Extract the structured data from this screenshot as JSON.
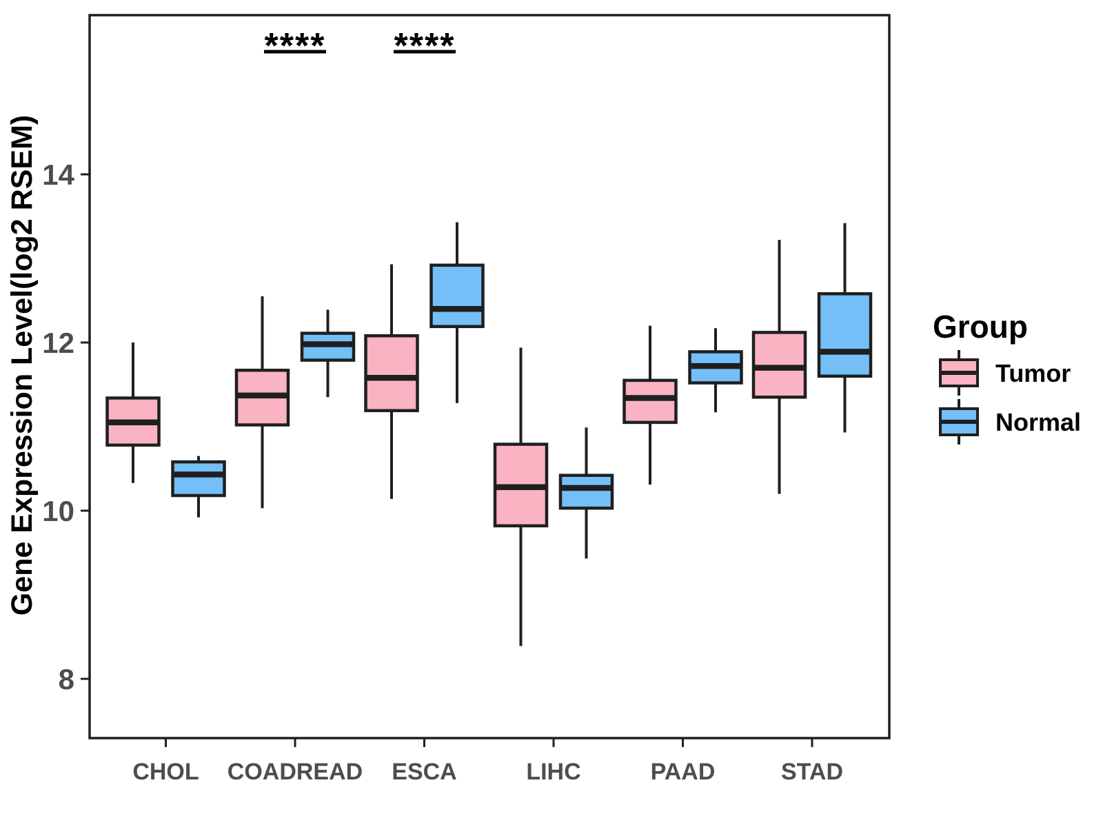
{
  "chart_data": {
    "type": "boxplot",
    "title": "",
    "xlabel": "",
    "ylabel": "Gene Expression Level(log2 RSEM)",
    "categories": [
      "CHOL",
      "COADREAD",
      "ESCA",
      "LIHC",
      "PAAD",
      "STAD"
    ],
    "y_ticks": [
      8,
      10,
      12,
      14
    ],
    "ylim": [
      7.3,
      15.9
    ],
    "grid": false,
    "legend": {
      "title": "Group",
      "position": "right"
    },
    "significance": [
      {
        "category": "COADREAD",
        "label": "****"
      },
      {
        "category": "ESCA",
        "label": "****"
      }
    ],
    "series": [
      {
        "name": "Tumor",
        "fill": "#F9B3C2",
        "stroke": "#1F1F1F",
        "boxes": [
          {
            "category": "CHOL",
            "whisker_low": 10.33,
            "q1": 10.78,
            "median": 11.05,
            "q3": 11.34,
            "whisker_high": 12.0
          },
          {
            "category": "COADREAD",
            "whisker_low": 10.03,
            "q1": 11.02,
            "median": 11.37,
            "q3": 11.67,
            "whisker_high": 12.55
          },
          {
            "category": "ESCA",
            "whisker_low": 10.14,
            "q1": 11.19,
            "median": 11.58,
            "q3": 12.08,
            "whisker_high": 12.93
          },
          {
            "category": "LIHC",
            "whisker_low": 8.39,
            "q1": 9.82,
            "median": 10.28,
            "q3": 10.79,
            "whisker_high": 11.94
          },
          {
            "category": "PAAD",
            "whisker_low": 10.31,
            "q1": 11.05,
            "median": 11.34,
            "q3": 11.55,
            "whisker_high": 12.2
          },
          {
            "category": "STAD",
            "whisker_low": 10.2,
            "q1": 11.35,
            "median": 11.7,
            "q3": 12.12,
            "whisker_high": 13.22
          }
        ]
      },
      {
        "name": "Normal",
        "fill": "#74BFF7",
        "stroke": "#1F1F1F",
        "boxes": [
          {
            "category": "CHOL",
            "whisker_low": 9.92,
            "q1": 10.18,
            "median": 10.43,
            "q3": 10.58,
            "whisker_high": 10.65
          },
          {
            "category": "COADREAD",
            "whisker_low": 11.35,
            "q1": 11.79,
            "median": 11.98,
            "q3": 12.11,
            "whisker_high": 12.39
          },
          {
            "category": "ESCA",
            "whisker_low": 11.28,
            "q1": 12.19,
            "median": 12.4,
            "q3": 12.92,
            "whisker_high": 13.43
          },
          {
            "category": "LIHC",
            "whisker_low": 9.43,
            "q1": 10.03,
            "median": 10.27,
            "q3": 10.42,
            "whisker_high": 10.99
          },
          {
            "category": "PAAD",
            "whisker_low": 11.17,
            "q1": 11.52,
            "median": 11.72,
            "q3": 11.89,
            "whisker_high": 12.17
          },
          {
            "category": "STAD",
            "whisker_low": 10.93,
            "q1": 11.6,
            "median": 11.89,
            "q3": 12.58,
            "whisker_high": 13.42
          }
        ]
      }
    ]
  }
}
